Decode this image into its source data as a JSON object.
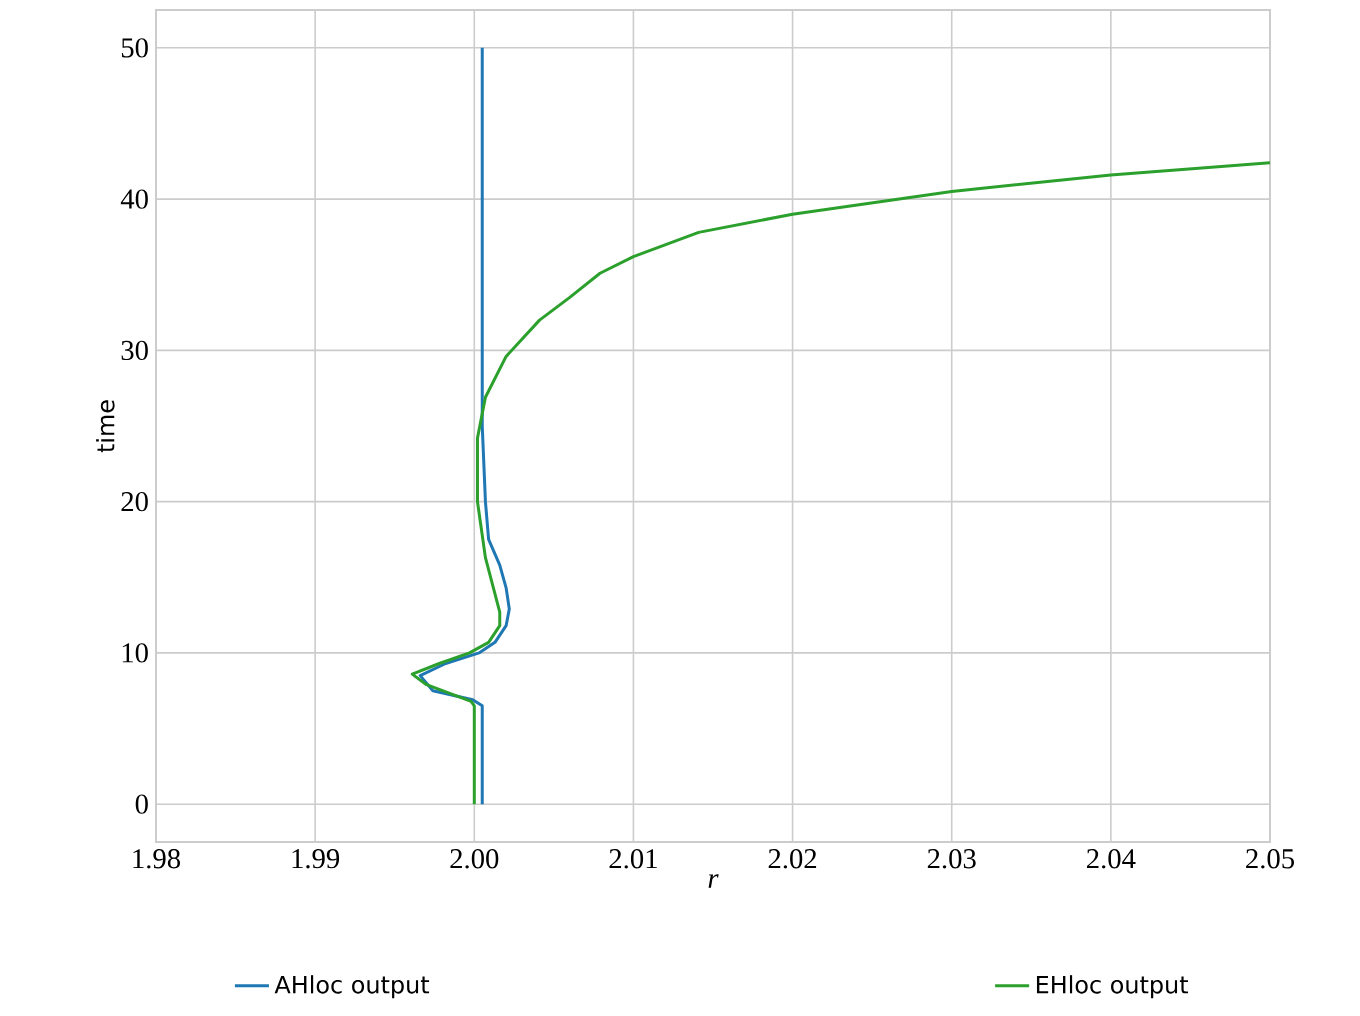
{
  "chart_data": {
    "type": "line",
    "xlabel": "r",
    "ylabel": "time",
    "xlim": [
      1.98,
      2.05
    ],
    "ylim": [
      -2.5,
      52.5
    ],
    "xticks": [
      1.98,
      1.99,
      {
        "value": 2.0,
        "label": "2.00"
      },
      2.01,
      2.02,
      2.03,
      2.04,
      2.05
    ],
    "yticks": [
      0,
      10,
      20,
      30,
      40,
      50
    ],
    "grid": true,
    "legend": "bottom",
    "series": [
      {
        "name": "AHloc output",
        "color": "#1f77b4",
        "x": [
          2.0005,
          2.0005,
          2.0005,
          1.9999,
          1.9974,
          1.9966,
          1.9982,
          2.0003,
          2.0013,
          2.002,
          2.0022,
          2.002,
          2.0016,
          2.0009,
          2.0007,
          2.0005,
          2.0005
        ],
        "values": [
          0,
          6.5,
          6.5,
          6.9,
          7.5,
          8.5,
          9.3,
          10,
          10.7,
          11.8,
          12.9,
          14.3,
          15.8,
          17.5,
          20,
          25,
          50
        ]
      },
      {
        "name": "EHloc output",
        "color": "#2ca02c",
        "x": [
          2.0,
          2.0,
          1.9998,
          1.997,
          1.9961,
          1.9978,
          1.9997,
          2.0009,
          2.0016,
          2.0016,
          2.0012,
          2.0007,
          2.0002,
          2.0002,
          2.0007,
          2.002,
          2.0041,
          2.006,
          2.0079,
          2.01,
          2.0141,
          2.02,
          2.03,
          2.04,
          2.05
        ],
        "values": [
          0,
          6.5,
          6.8,
          7.9,
          8.6,
          9.3,
          10,
          10.7,
          11.8,
          12.7,
          14.3,
          16.3,
          20,
          24.2,
          26.9,
          29.6,
          32,
          33.5,
          35.1,
          36.2,
          37.8,
          39.0,
          40.5,
          41.6,
          42.4
        ]
      }
    ]
  }
}
